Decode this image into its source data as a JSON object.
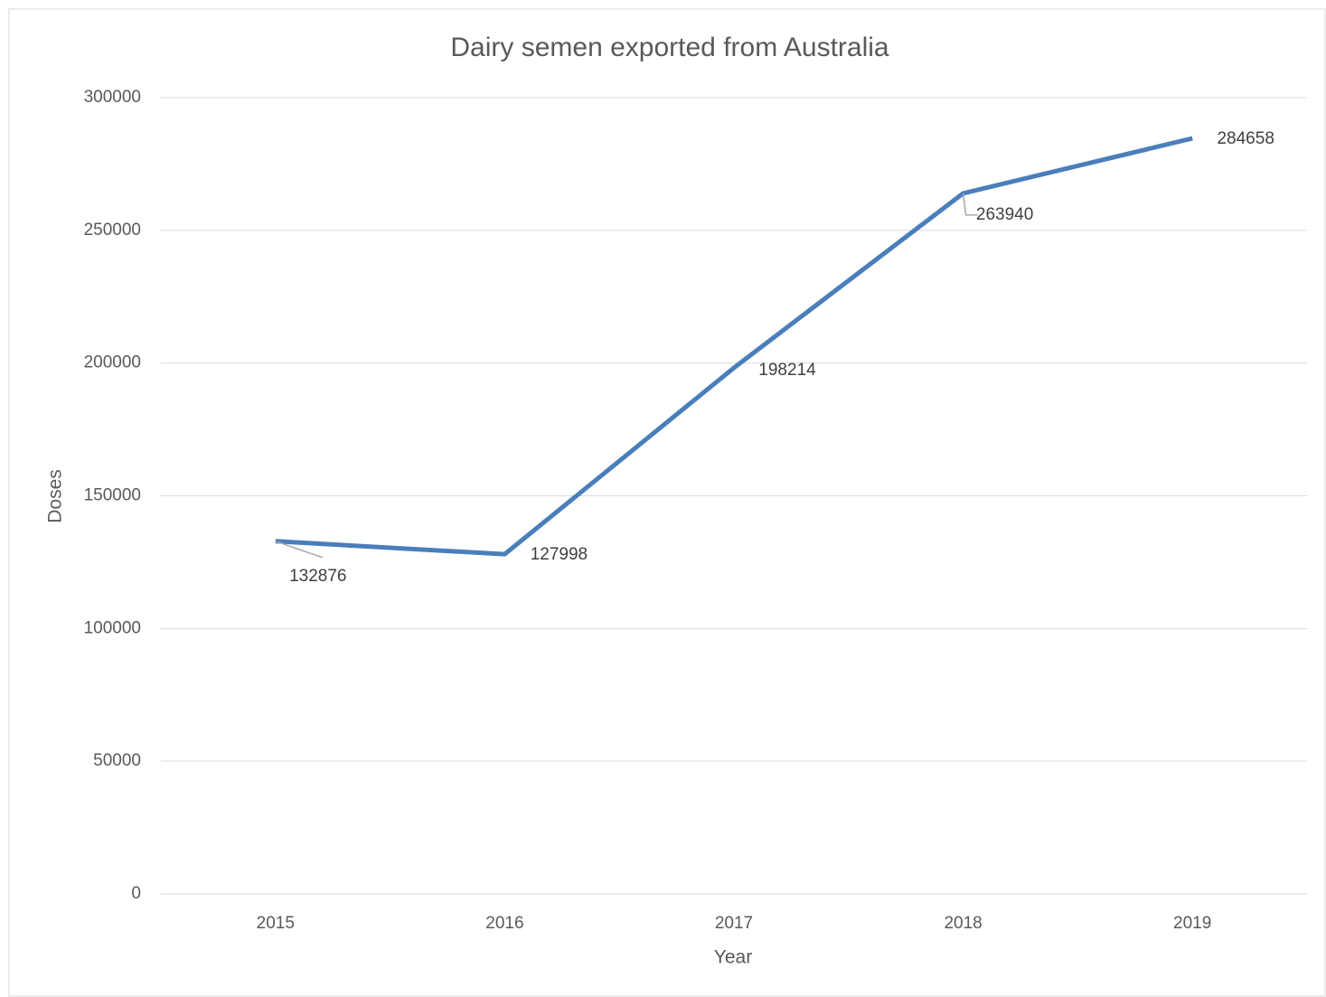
{
  "chart_data": {
    "type": "line",
    "title": "Dairy semen exported from Australia",
    "x_label": "Year",
    "y_label": "Doses",
    "categories": [
      "2015",
      "2016",
      "2017",
      "2018",
      "2019"
    ],
    "series": [
      {
        "name": "Doses",
        "color": "#4a7ebb",
        "values": [
          132876,
          127998,
          198214,
          263940,
          284658
        ]
      }
    ],
    "ylim": [
      0,
      300000
    ],
    "yticks": [
      0,
      50000,
      100000,
      150000,
      200000,
      250000,
      300000
    ],
    "grid": true
  }
}
